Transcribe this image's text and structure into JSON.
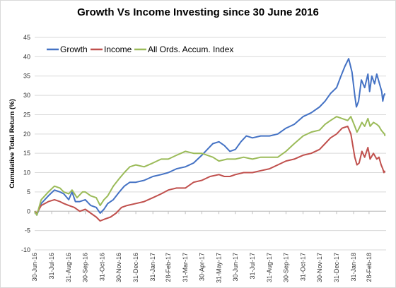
{
  "chart_data": {
    "type": "line",
    "title": "Growth Vs Income Investing since 30 June 2016",
    "xlabel": "",
    "ylabel": "Cumulative Total Return (%)",
    "ylim": [
      -10,
      45
    ],
    "yticks": [
      -10,
      -5,
      0,
      5,
      10,
      15,
      20,
      25,
      30,
      35,
      40,
      45
    ],
    "grid": "horizontal",
    "legend_position": "top-left",
    "x_tick_labels": [
      "30-Jun-16",
      "31-Jul-16",
      "31-Aug-16",
      "30-Sep-16",
      "31-Oct-16",
      "30-Nov-16",
      "31-Dec-16",
      "31-Jan-17",
      "28-Feb-17",
      "31-Mar-17",
      "30-Apr-17",
      "31-May-17",
      "30-Jun-17",
      "31-Jul-17",
      "31-Aug-17",
      "30-Sep-17",
      "31-Oct-17",
      "30-Nov-17",
      "31-Dec-17",
      "31-Jan-18",
      "28-Feb-18"
    ],
    "x_range": [
      "2016-06-30",
      "2018-03-31"
    ],
    "series": [
      {
        "name": "Growth",
        "color": "#4472C4",
        "points": [
          [
            "2016-06-30",
            0
          ],
          [
            "2016-07-04",
            -1
          ],
          [
            "2016-07-12",
            2
          ],
          [
            "2016-07-25",
            4
          ],
          [
            "2016-08-05",
            5.5
          ],
          [
            "2016-08-15",
            5
          ],
          [
            "2016-08-22",
            4.5
          ],
          [
            "2016-08-31",
            3
          ],
          [
            "2016-09-06",
            5
          ],
          [
            "2016-09-12",
            2.5
          ],
          [
            "2016-09-20",
            2.5
          ],
          [
            "2016-09-30",
            3
          ],
          [
            "2016-10-10",
            1.5
          ],
          [
            "2016-10-20",
            1
          ],
          [
            "2016-10-27",
            -0.5
          ],
          [
            "2016-11-03",
            0.5
          ],
          [
            "2016-11-10",
            2
          ],
          [
            "2016-11-20",
            3
          ],
          [
            "2016-12-01",
            5
          ],
          [
            "2016-12-10",
            6.5
          ],
          [
            "2016-12-20",
            7.5
          ],
          [
            "2016-12-31",
            7.5
          ],
          [
            "2017-01-15",
            8
          ],
          [
            "2017-01-31",
            9
          ],
          [
            "2017-02-15",
            9.5
          ],
          [
            "2017-02-28",
            10
          ],
          [
            "2017-03-15",
            11
          ],
          [
            "2017-03-31",
            11.5
          ],
          [
            "2017-04-15",
            12.5
          ],
          [
            "2017-04-30",
            14.5
          ],
          [
            "2017-05-10",
            16
          ],
          [
            "2017-05-20",
            17.5
          ],
          [
            "2017-05-31",
            18
          ],
          [
            "2017-06-10",
            17
          ],
          [
            "2017-06-20",
            15.5
          ],
          [
            "2017-06-30",
            16
          ],
          [
            "2017-07-10",
            18
          ],
          [
            "2017-07-20",
            19.5
          ],
          [
            "2017-07-31",
            19
          ],
          [
            "2017-08-15",
            19.5
          ],
          [
            "2017-08-31",
            19.5
          ],
          [
            "2017-09-15",
            20
          ],
          [
            "2017-09-30",
            21.5
          ],
          [
            "2017-10-15",
            22.5
          ],
          [
            "2017-10-31",
            24.5
          ],
          [
            "2017-11-15",
            25.5
          ],
          [
            "2017-11-30",
            27
          ],
          [
            "2017-12-10",
            28.5
          ],
          [
            "2017-12-20",
            30.5
          ],
          [
            "2017-12-31",
            32
          ],
          [
            "2018-01-08",
            35
          ],
          [
            "2018-01-15",
            37.5
          ],
          [
            "2018-01-22",
            39.5
          ],
          [
            "2018-01-28",
            36
          ],
          [
            "2018-02-02",
            30
          ],
          [
            "2018-02-05",
            27
          ],
          [
            "2018-02-09",
            28.5
          ],
          [
            "2018-02-14",
            34
          ],
          [
            "2018-02-20",
            32
          ],
          [
            "2018-02-26",
            35.5
          ],
          [
            "2018-03-01",
            31
          ],
          [
            "2018-03-05",
            35
          ],
          [
            "2018-03-10",
            33
          ],
          [
            "2018-03-14",
            35.5
          ],
          [
            "2018-03-19",
            33
          ],
          [
            "2018-03-23",
            31
          ],
          [
            "2018-03-25",
            28.5
          ],
          [
            "2018-03-27",
            30
          ],
          [
            "2018-03-29",
            30.5
          ]
        ]
      },
      {
        "name": "Income",
        "color": "#C0504D",
        "points": [
          [
            "2016-06-30",
            0
          ],
          [
            "2016-07-04",
            -0.5
          ],
          [
            "2016-07-12",
            1.5
          ],
          [
            "2016-07-25",
            2.5
          ],
          [
            "2016-08-05",
            3
          ],
          [
            "2016-08-15",
            2.5
          ],
          [
            "2016-08-22",
            2
          ],
          [
            "2016-08-31",
            1.5
          ],
          [
            "2016-09-10",
            1
          ],
          [
            "2016-09-20",
            0
          ],
          [
            "2016-09-30",
            0.5
          ],
          [
            "2016-10-10",
            -0.5
          ],
          [
            "2016-10-20",
            -1.5
          ],
          [
            "2016-10-27",
            -2.5
          ],
          [
            "2016-11-05",
            -2
          ],
          [
            "2016-11-15",
            -1.5
          ],
          [
            "2016-11-25",
            -0.5
          ],
          [
            "2016-12-05",
            1
          ],
          [
            "2016-12-15",
            1.5
          ],
          [
            "2016-12-31",
            2
          ],
          [
            "2017-01-15",
            2.5
          ],
          [
            "2017-01-31",
            3.5
          ],
          [
            "2017-02-15",
            4.5
          ],
          [
            "2017-02-28",
            5.5
          ],
          [
            "2017-03-15",
            6
          ],
          [
            "2017-03-31",
            6
          ],
          [
            "2017-04-15",
            7.5
          ],
          [
            "2017-04-30",
            8
          ],
          [
            "2017-05-15",
            9
          ],
          [
            "2017-05-31",
            9.5
          ],
          [
            "2017-06-10",
            9
          ],
          [
            "2017-06-20",
            9
          ],
          [
            "2017-06-30",
            9.5
          ],
          [
            "2017-07-15",
            10
          ],
          [
            "2017-07-31",
            10
          ],
          [
            "2017-08-15",
            10.5
          ],
          [
            "2017-08-31",
            11
          ],
          [
            "2017-09-15",
            12
          ],
          [
            "2017-09-30",
            13
          ],
          [
            "2017-10-15",
            13.5
          ],
          [
            "2017-10-31",
            14.5
          ],
          [
            "2017-11-15",
            15
          ],
          [
            "2017-11-30",
            16
          ],
          [
            "2017-12-10",
            17.5
          ],
          [
            "2017-12-20",
            19
          ],
          [
            "2017-12-31",
            20
          ],
          [
            "2018-01-10",
            21.5
          ],
          [
            "2018-01-20",
            22
          ],
          [
            "2018-01-26",
            20
          ],
          [
            "2018-02-02",
            14
          ],
          [
            "2018-02-06",
            12
          ],
          [
            "2018-02-10",
            12.5
          ],
          [
            "2018-02-15",
            15.5
          ],
          [
            "2018-02-20",
            14
          ],
          [
            "2018-02-26",
            16.5
          ],
          [
            "2018-03-02",
            13.5
          ],
          [
            "2018-03-08",
            15
          ],
          [
            "2018-03-14",
            13.5
          ],
          [
            "2018-03-18",
            14
          ],
          [
            "2018-03-22",
            12
          ],
          [
            "2018-03-25",
            11
          ],
          [
            "2018-03-27",
            10
          ],
          [
            "2018-03-29",
            10.5
          ]
        ]
      },
      {
        "name": "All Ords. Accum. Index",
        "color": "#9BBB59",
        "points": [
          [
            "2016-06-30",
            0
          ],
          [
            "2016-07-04",
            -1
          ],
          [
            "2016-07-12",
            3
          ],
          [
            "2016-07-25",
            5
          ],
          [
            "2016-08-05",
            6.5
          ],
          [
            "2016-08-15",
            6
          ],
          [
            "2016-08-22",
            5
          ],
          [
            "2016-08-31",
            4.5
          ],
          [
            "2016-09-06",
            5.5
          ],
          [
            "2016-09-15",
            3.5
          ],
          [
            "2016-09-25",
            5
          ],
          [
            "2016-09-30",
            5
          ],
          [
            "2016-10-10",
            4
          ],
          [
            "2016-10-20",
            3.5
          ],
          [
            "2016-10-27",
            1.5
          ],
          [
            "2016-11-03",
            3
          ],
          [
            "2016-11-10",
            4
          ],
          [
            "2016-11-20",
            6.5
          ],
          [
            "2016-12-01",
            8.5
          ],
          [
            "2016-12-10",
            10
          ],
          [
            "2016-12-20",
            11.5
          ],
          [
            "2016-12-31",
            12
          ],
          [
            "2017-01-15",
            11.5
          ],
          [
            "2017-01-31",
            12.5
          ],
          [
            "2017-02-15",
            13.5
          ],
          [
            "2017-02-28",
            13.5
          ],
          [
            "2017-03-15",
            14.5
          ],
          [
            "2017-03-31",
            15.5
          ],
          [
            "2017-04-15",
            15
          ],
          [
            "2017-04-30",
            15
          ],
          [
            "2017-05-10",
            14.5
          ],
          [
            "2017-05-20",
            14
          ],
          [
            "2017-05-31",
            13
          ],
          [
            "2017-06-15",
            13.5
          ],
          [
            "2017-06-30",
            13.5
          ],
          [
            "2017-07-15",
            14
          ],
          [
            "2017-07-31",
            13.5
          ],
          [
            "2017-08-15",
            14
          ],
          [
            "2017-08-31",
            14
          ],
          [
            "2017-09-15",
            14
          ],
          [
            "2017-09-30",
            15.5
          ],
          [
            "2017-10-15",
            17.5
          ],
          [
            "2017-10-31",
            19.5
          ],
          [
            "2017-11-15",
            20.5
          ],
          [
            "2017-11-30",
            21
          ],
          [
            "2017-12-10",
            22.5
          ],
          [
            "2017-12-20",
            23.5
          ],
          [
            "2017-12-31",
            24.5
          ],
          [
            "2018-01-10",
            24
          ],
          [
            "2018-01-20",
            23.5
          ],
          [
            "2018-01-26",
            24.5
          ],
          [
            "2018-02-02",
            22
          ],
          [
            "2018-02-06",
            20.5
          ],
          [
            "2018-02-10",
            21.5
          ],
          [
            "2018-02-15",
            23
          ],
          [
            "2018-02-20",
            22
          ],
          [
            "2018-02-26",
            24
          ],
          [
            "2018-03-02",
            22
          ],
          [
            "2018-03-08",
            23
          ],
          [
            "2018-03-14",
            22.5
          ],
          [
            "2018-03-18",
            22
          ],
          [
            "2018-03-22",
            21
          ],
          [
            "2018-03-25",
            20.5
          ],
          [
            "2018-03-28",
            20
          ],
          [
            "2018-03-29",
            19.5
          ]
        ]
      }
    ]
  }
}
